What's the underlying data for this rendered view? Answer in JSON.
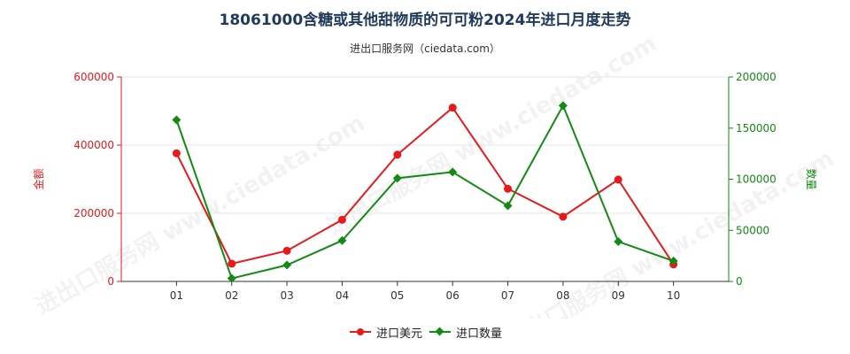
{
  "title": "18061000含糖或其他甜物质的可可粉2024年进口月度走势",
  "subtitle": "进出口服务网（ciedata.com）",
  "watermark": "进出口服务网 www.ciedata.com",
  "colors": {
    "amount": "#e8191b",
    "quantity": "#138a13",
    "grid": "#e6e6e6",
    "title": "#1f3a5a"
  },
  "chart_data": {
    "type": "line",
    "categories": [
      "01",
      "02",
      "03",
      "04",
      "05",
      "06",
      "07",
      "08",
      "09",
      "10"
    ],
    "left_axis": {
      "label": "金额",
      "ylim": [
        0,
        600000
      ],
      "ticks": [
        "0",
        "200000",
        "400000",
        "600000"
      ]
    },
    "right_axis": {
      "label": "数量",
      "ylim": [
        0,
        200000
      ],
      "ticks": [
        "0",
        "50000",
        "100000",
        "150000",
        "200000"
      ]
    },
    "series": [
      {
        "name": "进口美元",
        "axis": "left",
        "marker": "circle",
        "values": [
          376000,
          52000,
          90000,
          181000,
          372000,
          510000,
          272000,
          190000,
          299000,
          50000
        ]
      },
      {
        "name": "进口数量",
        "axis": "right",
        "marker": "diamond",
        "values": [
          158000,
          3000,
          16000,
          40000,
          101000,
          107000,
          74000,
          172000,
          39000,
          20000
        ]
      }
    ],
    "grid": true,
    "legend": "bottom-center"
  }
}
